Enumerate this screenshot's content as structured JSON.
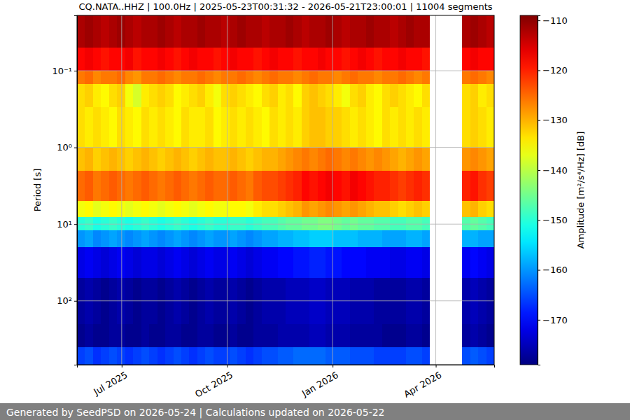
{
  "chart_data": {
    "type": "heatmap",
    "title": "CQ.NATA..HHZ | 100.0Hz | 2025-05-23T00:31:32 - 2026-05-21T23:00:01 | 11004 segments",
    "y_label": "Period [s]",
    "footer": "Generated by SeedPSD on 2026-05-24 | Calculations updated on 2026-05-22",
    "log": "y",
    "grid": true,
    "xlim": [
      "2025-05-23T00:31:32",
      "2026-05-21T23:00:01"
    ],
    "xticks": [
      {
        "value": "2025-07-01",
        "label": "Jul 2025"
      },
      {
        "value": "2025-10-01",
        "label": "Oct 2025"
      },
      {
        "value": "2026-01-01",
        "label": "Jan 2026"
      },
      {
        "value": "2026-04-01",
        "label": "Apr 2026"
      }
    ],
    "ylim": [
      680,
      0.019
    ],
    "yticks": [
      {
        "value": 0.1,
        "label": "10⁻¹"
      },
      {
        "value": 1,
        "label": "10⁰"
      },
      {
        "value": 10,
        "label": "10¹"
      },
      {
        "value": 100,
        "label": "10²"
      }
    ],
    "x": [
      "2025-05-23",
      "2025-05-30",
      "2025-06-06",
      "2025-06-13",
      "2025-06-20",
      "2025-06-27",
      "2025-07-04",
      "2025-07-11",
      "2025-07-18",
      "2025-07-25",
      "2025-08-01",
      "2025-08-08",
      "2025-08-15",
      "2025-08-22",
      "2025-08-29",
      "2025-09-05",
      "2025-09-12",
      "2025-09-19",
      "2025-09-26",
      "2025-10-03",
      "2025-10-10",
      "2025-10-17",
      "2025-10-24",
      "2025-10-31",
      "2025-11-07",
      "2025-11-14",
      "2025-11-21",
      "2025-11-28",
      "2025-12-05",
      "2025-12-12",
      "2025-12-19",
      "2025-12-26",
      "2026-01-02",
      "2026-01-09",
      "2026-01-16",
      "2026-01-23",
      "2026-01-30",
      "2026-02-06",
      "2026-02-13",
      "2026-02-20",
      "2026-02-27",
      "2026-03-06",
      "2026-03-13",
      "2026-03-20",
      "2026-03-27",
      "2026-04-03",
      "2026-04-10",
      "2026-04-17",
      "2026-04-24",
      "2026-05-01",
      "2026-05-08",
      "2026-05-15"
    ],
    "y": [
      0.019,
      0.05,
      0.1,
      0.15,
      0.3,
      1,
      2,
      5,
      8,
      12,
      20,
      50,
      200,
      400,
      680
    ],
    "cells": [
      [
        -112,
        -111,
        -112,
        -113,
        -112,
        -111,
        -112,
        -113,
        -112,
        -112,
        -111,
        -112,
        -113,
        -112,
        -112,
        -111,
        -112,
        -112,
        -113,
        -112,
        -111,
        -112,
        -112,
        -113,
        -112,
        -112,
        -111,
        -112,
        -113,
        -112,
        -112,
        -111,
        -112,
        -113,
        -112,
        -112,
        -111,
        -112,
        -112,
        -113,
        -112,
        -111,
        -112,
        -112,
        null,
        null,
        null,
        null,
        -112,
        -111,
        -112,
        -113
      ],
      [
        -118,
        -117,
        -118,
        -119,
        -118,
        -118,
        -117,
        -119,
        -118,
        -118,
        -117,
        -118,
        -119,
        -118,
        -117,
        -118,
        -118,
        -119,
        -118,
        -117,
        -118,
        -118,
        -119,
        -118,
        -117,
        -118,
        -118,
        -119,
        -118,
        -118,
        -117,
        -118,
        -118,
        -119,
        -118,
        -117,
        -118,
        -119,
        -118,
        -118,
        -117,
        -118,
        -118,
        -119,
        null,
        null,
        null,
        null,
        -118,
        -117,
        -118,
        -118
      ],
      [
        -126,
        -125,
        -127,
        -126,
        -126,
        -125,
        -127,
        -128,
        -126,
        -126,
        -125,
        -126,
        -127,
        -126,
        -126,
        -125,
        -126,
        -127,
        -126,
        -126,
        -125,
        -126,
        -127,
        -126,
        -125,
        -126,
        -126,
        -127,
        -126,
        -125,
        -126,
        -126,
        -127,
        -126,
        -125,
        -126,
        -126,
        -127,
        -126,
        -126,
        -125,
        -126,
        -127,
        -126,
        null,
        null,
        null,
        null,
        -126,
        -125,
        -126,
        -127
      ],
      [
        -133,
        -132,
        -134,
        -135,
        -133,
        -132,
        -136,
        -138,
        -134,
        -133,
        -132,
        -133,
        -135,
        -134,
        -133,
        -132,
        -134,
        -136,
        -133,
        -132,
        -133,
        -134,
        -135,
        -133,
        -132,
        -134,
        -133,
        -135,
        -132,
        -131,
        -132,
        -133,
        -134,
        -136,
        -133,
        -132,
        -134,
        -135,
        -133,
        -132,
        -133,
        -134,
        -135,
        -133,
        null,
        null,
        null,
        null,
        -133,
        -132,
        -134,
        -133
      ],
      [
        -133,
        -134,
        -133,
        -134,
        -135,
        -133,
        -134,
        -135,
        -133,
        -134,
        -133,
        -134,
        -135,
        -133,
        -134,
        -134,
        -133,
        -135,
        -134,
        -133,
        -134,
        -133,
        -134,
        -135,
        -133,
        -134,
        -133,
        -134,
        -132,
        -131,
        -131,
        -132,
        -132,
        -133,
        -134,
        -133,
        -134,
        -135,
        -133,
        -134,
        -133,
        -134,
        -133,
        -134,
        null,
        null,
        null,
        null,
        -133,
        -132,
        -133,
        -134
      ],
      [
        -131,
        -130,
        -132,
        -131,
        -130,
        -131,
        -132,
        -131,
        -130,
        -131,
        -132,
        -131,
        -130,
        -131,
        -132,
        -131,
        -130,
        -131,
        -131,
        -130,
        -131,
        -132,
        -131,
        -130,
        -130,
        -129,
        -128,
        -127,
        -126,
        -127,
        -126,
        -125,
        -126,
        -127,
        -126,
        -127,
        -128,
        -127,
        -128,
        -129,
        -130,
        -129,
        -128,
        -129,
        null,
        null,
        null,
        null,
        -128,
        -127,
        -128,
        -129
      ],
      [
        -125,
        -124,
        -126,
        -125,
        -124,
        -125,
        -126,
        -125,
        -124,
        -125,
        -126,
        -125,
        -124,
        -125,
        -126,
        -125,
        -124,
        -125,
        -125,
        -124,
        -125,
        -126,
        -124,
        -123,
        -123,
        -122,
        -121,
        -120,
        -118,
        -119,
        -118,
        -117,
        -118,
        -119,
        -117,
        -118,
        -119,
        -120,
        -120,
        -121,
        -122,
        -121,
        -120,
        -121,
        null,
        null,
        null,
        null,
        -120,
        -119,
        -121,
        -122
      ],
      [
        -136,
        -135,
        -137,
        -136,
        -135,
        -136,
        -137,
        -136,
        -135,
        -136,
        -137,
        -136,
        -135,
        -136,
        -137,
        -136,
        -135,
        -136,
        -136,
        -135,
        -135,
        -136,
        -134,
        -133,
        -133,
        -132,
        -131,
        -130,
        -128,
        -129,
        -128,
        -127,
        -128,
        -129,
        -128,
        -129,
        -130,
        -131,
        -131,
        -132,
        -133,
        -132,
        -131,
        -132,
        null,
        null,
        null,
        null,
        -131,
        -130,
        -132,
        -133
      ],
      [
        -150,
        -149,
        -151,
        -150,
        -149,
        -150,
        -151,
        -150,
        -149,
        -150,
        -151,
        -150,
        -149,
        -150,
        -151,
        -150,
        -149,
        -150,
        -150,
        -149,
        -149,
        -150,
        -149,
        -148,
        -148,
        -147,
        -146,
        -146,
        -145,
        -145,
        -144,
        -144,
        -145,
        -146,
        -145,
        -146,
        -146,
        -147,
        -147,
        -148,
        -148,
        -147,
        -147,
        -148,
        null,
        null,
        null,
        null,
        -147,
        -146,
        -147,
        -148
      ],
      [
        -160,
        -159,
        -161,
        -160,
        -159,
        -160,
        -161,
        -160,
        -159,
        -160,
        -161,
        -160,
        -159,
        -160,
        -161,
        -160,
        -159,
        -160,
        -160,
        -159,
        -160,
        -161,
        -160,
        -159,
        -159,
        -158,
        -158,
        -157,
        -157,
        -156,
        -156,
        -156,
        -157,
        -157,
        -157,
        -158,
        -158,
        -158,
        -159,
        -159,
        -159,
        -158,
        -158,
        -159,
        null,
        null,
        null,
        null,
        -158,
        -158,
        -159,
        -159
      ],
      [
        -172,
        -171,
        -172,
        -173,
        -172,
        -171,
        -172,
        -173,
        -172,
        -172,
        -173,
        -172,
        -171,
        -172,
        -173,
        -172,
        -171,
        -172,
        -172,
        -171,
        -172,
        -173,
        -172,
        -171,
        -171,
        -170,
        -170,
        -169,
        -169,
        -168,
        -168,
        -169,
        -169,
        -170,
        -170,
        -170,
        -171,
        -171,
        -171,
        -172,
        -172,
        -171,
        -171,
        -172,
        null,
        null,
        null,
        null,
        -171,
        -170,
        -171,
        -172
      ],
      [
        -177,
        -176,
        -177,
        -178,
        -177,
        -176,
        -177,
        -178,
        -177,
        -177,
        -178,
        -177,
        -176,
        -177,
        -178,
        -177,
        -176,
        -177,
        -177,
        -176,
        -177,
        -178,
        -177,
        -176,
        -176,
        -176,
        -175,
        -175,
        -175,
        -174,
        -174,
        -175,
        -175,
        -175,
        -176,
        -176,
        -176,
        -177,
        -177,
        -177,
        -177,
        -176,
        -176,
        -177,
        null,
        null,
        null,
        null,
        -176,
        -175,
        -176,
        -177
      ],
      [
        -178,
        -177,
        -178,
        -178,
        -177,
        -177,
        -178,
        -178,
        -177,
        -178,
        -178,
        -177,
        -177,
        -178,
        -178,
        -177,
        -177,
        -178,
        -178,
        -177,
        -178,
        -178,
        -177,
        -177,
        -177,
        -176,
        -176,
        -176,
        -176,
        -175,
        -175,
        -176,
        -176,
        -176,
        -177,
        -177,
        -177,
        -177,
        -178,
        -178,
        -178,
        -177,
        -177,
        -178,
        null,
        null,
        null,
        null,
        -177,
        -176,
        -177,
        -178
      ],
      [
        -166,
        -165,
        -167,
        -166,
        -165,
        -166,
        -167,
        -166,
        -165,
        -166,
        -167,
        -166,
        -165,
        -166,
        -167,
        -166,
        -165,
        -166,
        -166,
        -165,
        -166,
        -167,
        -166,
        -165,
        -165,
        -164,
        -164,
        -163,
        -163,
        -163,
        -163,
        -164,
        -164,
        -164,
        -165,
        -165,
        -165,
        -166,
        -166,
        -166,
        -166,
        -165,
        -165,
        -166,
        null,
        null,
        null,
        null,
        -165,
        -164,
        -165,
        -166
      ]
    ],
    "colorbar": {
      "label": "Amplitude [m²/s⁴/Hz] [dB]",
      "range": [
        -179,
        -109
      ],
      "ticks": [
        {
          "value": -170,
          "label": "−170"
        },
        {
          "value": -160,
          "label": "−160"
        },
        {
          "value": -150,
          "label": "−150"
        },
        {
          "value": -140,
          "label": "−140"
        },
        {
          "value": -130,
          "label": "−130"
        },
        {
          "value": -120,
          "label": "−120"
        },
        {
          "value": -110,
          "label": "−110"
        }
      ]
    }
  }
}
